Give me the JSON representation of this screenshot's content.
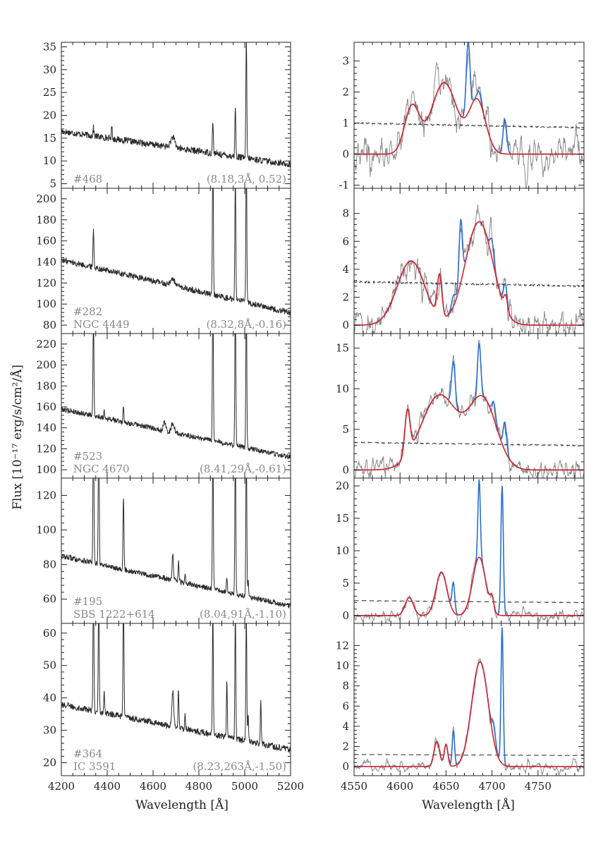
{
  "figure": {
    "ylabel": "Flux [10⁻¹⁷ erg/s/cm²/Å]",
    "left_xlabel": "Wavelength [Å]",
    "right_xlabel": "Wavelength [Å]"
  },
  "chart_data": [
    {
      "type": "line",
      "column": "left",
      "xlim": [
        4200,
        5200
      ],
      "ylim": [
        4,
        36
      ],
      "xticks": [
        4200,
        4400,
        4600,
        4800,
        5000,
        5200
      ],
      "yticks": [
        5,
        10,
        15,
        20,
        25,
        30,
        35
      ],
      "annotations": {
        "id": "#468",
        "name": "",
        "params": "(8.18,3Å, 0.52)"
      },
      "continuum": {
        "start": 16.5,
        "end": 9.2
      },
      "features": [
        {
          "x": 4340,
          "height": 1.8,
          "width": 2
        },
        {
          "x": 4420,
          "height": 2.6,
          "width": 2
        },
        {
          "x": 4686,
          "height": 2.2,
          "width": 9
        },
        {
          "x": 4861,
          "height": 7,
          "width": 2
        },
        {
          "x": 4959,
          "height": 11,
          "width": 2
        },
        {
          "x": 5007,
          "height": 27,
          "width": 2
        }
      ],
      "noise": 0.45
    },
    {
      "type": "line",
      "column": "left",
      "xlim": [
        4200,
        5200
      ],
      "ylim": [
        72,
        210
      ],
      "xticks": [
        4200,
        4400,
        4600,
        4800,
        5000,
        5200
      ],
      "yticks": [
        80,
        100,
        120,
        140,
        160,
        180,
        200
      ],
      "annotations": {
        "id": "#282",
        "name": "NGC 4449",
        "params": "(8.32,8Å,-0.16)"
      },
      "continuum": {
        "start": 142,
        "end": 92
      },
      "features": [
        {
          "x": 4340,
          "height": 38,
          "width": 2
        },
        {
          "x": 4686,
          "height": 6,
          "width": 10
        },
        {
          "x": 4861,
          "height": 150,
          "width": 2
        },
        {
          "x": 4959,
          "height": 120,
          "width": 2
        },
        {
          "x": 5007,
          "height": 150,
          "width": 2
        }
      ],
      "noise": 1.8
    },
    {
      "type": "line",
      "column": "left",
      "xlim": [
        4200,
        5200
      ],
      "ylim": [
        92,
        230
      ],
      "xticks": [
        4200,
        4400,
        4600,
        4800,
        5000,
        5200
      ],
      "yticks": [
        100,
        120,
        140,
        160,
        180,
        200,
        220
      ],
      "annotations": {
        "id": "#523",
        "name": "NGC 4670",
        "params": "(8.41,29Å,-0.61)"
      },
      "continuum": {
        "start": 158,
        "end": 112
      },
      "features": [
        {
          "x": 4340,
          "height": 100,
          "width": 2
        },
        {
          "x": 4387,
          "height": 8,
          "width": 2
        },
        {
          "x": 4471,
          "height": 14,
          "width": 2
        },
        {
          "x": 4650,
          "height": 8,
          "width": 5
        },
        {
          "x": 4686,
          "height": 9,
          "width": 6
        },
        {
          "x": 4861,
          "height": 150,
          "width": 2
        },
        {
          "x": 4959,
          "height": 150,
          "width": 2
        },
        {
          "x": 5007,
          "height": 150,
          "width": 2
        }
      ],
      "noise": 1.6
    },
    {
      "type": "line",
      "column": "left",
      "xlim": [
        4200,
        5200
      ],
      "ylim": [
        46,
        130
      ],
      "xticks": [
        4200,
        4400,
        4600,
        4800,
        5000,
        5200
      ],
      "yticks": [
        60,
        80,
        100,
        120
      ],
      "annotations": {
        "id": "#195",
        "name": "SBS 1222+614",
        "params": "(8.04,91Å,-1.10)"
      },
      "continuum": {
        "start": 85,
        "end": 56
      },
      "features": [
        {
          "x": 4340,
          "height": 90,
          "width": 2
        },
        {
          "x": 4363,
          "height": 90,
          "width": 2
        },
        {
          "x": 4471,
          "height": 43,
          "width": 2
        },
        {
          "x": 4686,
          "height": 15,
          "width": 3
        },
        {
          "x": 4711,
          "height": 12,
          "width": 2
        },
        {
          "x": 4740,
          "height": 6,
          "width": 2
        },
        {
          "x": 4861,
          "height": 90,
          "width": 2
        },
        {
          "x": 4922,
          "height": 8,
          "width": 2
        },
        {
          "x": 4959,
          "height": 90,
          "width": 2
        },
        {
          "x": 5007,
          "height": 90,
          "width": 2
        },
        {
          "x": 5015,
          "height": 10,
          "width": 2
        }
      ],
      "noise": 1.0
    },
    {
      "type": "line",
      "column": "left",
      "xlim": [
        4200,
        5200
      ],
      "ylim": [
        16,
        63
      ],
      "xticks": [
        4200,
        4400,
        4600,
        4800,
        5000,
        5200
      ],
      "yticks": [
        20,
        30,
        40,
        50,
        60
      ],
      "annotations": {
        "id": "#364",
        "name": "IC 3591",
        "params": "(8.23,263Å,-1.50)"
      },
      "continuum": {
        "start": 38,
        "end": 24
      },
      "features": [
        {
          "x": 4340,
          "height": 40,
          "width": 2
        },
        {
          "x": 4363,
          "height": 40,
          "width": 2
        },
        {
          "x": 4387,
          "height": 6,
          "width": 2
        },
        {
          "x": 4471,
          "height": 40,
          "width": 2
        },
        {
          "x": 4686,
          "height": 11,
          "width": 4
        },
        {
          "x": 4711,
          "height": 12,
          "width": 2
        },
        {
          "x": 4740,
          "height": 4,
          "width": 2
        },
        {
          "x": 4861,
          "height": 40,
          "width": 2
        },
        {
          "x": 4922,
          "height": 18,
          "width": 2
        },
        {
          "x": 4959,
          "height": 40,
          "width": 2
        },
        {
          "x": 5007,
          "height": 40,
          "width": 2
        },
        {
          "x": 5015,
          "height": 8,
          "width": 2
        },
        {
          "x": 5070,
          "height": 13,
          "width": 2
        }
      ],
      "noise": 0.6
    },
    {
      "type": "line",
      "column": "right",
      "xlim": [
        4550,
        4800
      ],
      "ylim": [
        -1.1,
        3.6
      ],
      "xticks": [
        4550,
        4600,
        4650,
        4700,
        4750
      ],
      "yticks": [
        -1,
        0,
        1,
        2,
        3
      ],
      "model": [
        {
          "center": 4613,
          "amp": 1.5,
          "sigma": 8
        },
        {
          "center": 4648,
          "amp": 2.3,
          "sigma": 14
        },
        {
          "center": 4684,
          "amp": 1.7,
          "sigma": 9
        }
      ],
      "narrow": [
        {
          "center": 4674,
          "amp": 2.3,
          "sigma": 2
        },
        {
          "center": 4686,
          "amp": 0.3,
          "sigma": 2
        },
        {
          "center": 4714,
          "amp": 1.1,
          "sigma": 2
        }
      ],
      "error_level": {
        "start": 1.0,
        "end": 0.85
      },
      "noise": 0.7
    },
    {
      "type": "line",
      "column": "right",
      "xlim": [
        4550,
        4800
      ],
      "ylim": [
        -0.6,
        9.8
      ],
      "xticks": [
        4550,
        4600,
        4650,
        4700,
        4750
      ],
      "yticks": [
        0,
        2,
        4,
        6,
        8
      ],
      "model": [
        {
          "center": 4612,
          "amp": 4.6,
          "sigma": 15
        },
        {
          "center": 4643,
          "amp": 3.0,
          "sigma": 2.5
        },
        {
          "center": 4686,
          "amp": 7.4,
          "sigma": 15
        },
        {
          "center": 4715,
          "amp": 1.0,
          "sigma": 2
        }
      ],
      "narrow": [
        {
          "center": 4658,
          "amp": 0.8,
          "sigma": 2
        },
        {
          "center": 4666,
          "amp": 4.5,
          "sigma": 1.8
        },
        {
          "center": 4700,
          "amp": 1.3,
          "sigma": 2
        },
        {
          "center": 4714,
          "amp": 0.8,
          "sigma": 2
        }
      ],
      "error_level": {
        "start": 3.1,
        "end": 2.8
      },
      "noise": 1.3
    },
    {
      "type": "line",
      "column": "right",
      "xlim": [
        4550,
        4800
      ],
      "ylim": [
        -1.0,
        16.8
      ],
      "xticks": [
        4550,
        4600,
        4650,
        4700,
        4750
      ],
      "yticks": [
        0,
        5,
        10,
        15
      ],
      "model": [
        {
          "center": 4608,
          "amp": 5.5,
          "sigma": 2.8
        },
        {
          "center": 4643,
          "amp": 9.2,
          "sigma": 20
        },
        {
          "center": 4690,
          "amp": 8.5,
          "sigma": 15
        }
      ],
      "narrow": [
        {
          "center": 4658,
          "amp": 5.5,
          "sigma": 2
        },
        {
          "center": 4686,
          "amp": 6.5,
          "sigma": 1.8
        },
        {
          "center": 4702,
          "amp": 2.0,
          "sigma": 2
        },
        {
          "center": 4714,
          "amp": 3.5,
          "sigma": 1.8
        }
      ],
      "error_level": {
        "start": 3.4,
        "end": 3.0
      },
      "noise": 1.6
    },
    {
      "type": "line",
      "column": "right",
      "xlim": [
        4550,
        4800
      ],
      "ylim": [
        -1.2,
        21.2
      ],
      "xticks": [
        4550,
        4600,
        4650,
        4700,
        4750
      ],
      "yticks": [
        0,
        5,
        10,
        15,
        20
      ],
      "model": [
        {
          "center": 4610,
          "amp": 2.8,
          "sigma": 4.5
        },
        {
          "center": 4645,
          "amp": 6.7,
          "sigma": 6
        },
        {
          "center": 4686,
          "amp": 9.0,
          "sigma": 7
        },
        {
          "center": 4700,
          "amp": 2.0,
          "sigma": 2
        }
      ],
      "narrow": [
        {
          "center": 4658,
          "amp": 4.5,
          "sigma": 1.5
        },
        {
          "center": 4686,
          "amp": 12.0,
          "sigma": 1.3
        },
        {
          "center": 4711,
          "amp": 20.0,
          "sigma": 1.3
        }
      ],
      "error_level": {
        "start": 2.3,
        "end": 2.0
      },
      "noise": 1.0
    },
    {
      "type": "line",
      "column": "right",
      "xlim": [
        4550,
        4800
      ],
      "ylim": [
        -0.9,
        14.2
      ],
      "xticks": [
        4550,
        4600,
        4650,
        4700,
        4750
      ],
      "yticks": [
        0,
        2,
        4,
        6,
        8,
        10,
        12
      ],
      "model": [
        {
          "center": 4640,
          "amp": 2.5,
          "sigma": 3
        },
        {
          "center": 4650,
          "amp": 2.2,
          "sigma": 2
        },
        {
          "center": 4687,
          "amp": 10.4,
          "sigma": 9
        }
      ],
      "narrow": [
        {
          "center": 4658,
          "amp": 3.5,
          "sigma": 1.3
        },
        {
          "center": 4702,
          "amp": 1.5,
          "sigma": 2
        },
        {
          "center": 4711,
          "amp": 13.5,
          "sigma": 1.2
        }
      ],
      "error_level": {
        "start": 1.2,
        "end": 1.1
      },
      "noise": 0.6
    }
  ]
}
